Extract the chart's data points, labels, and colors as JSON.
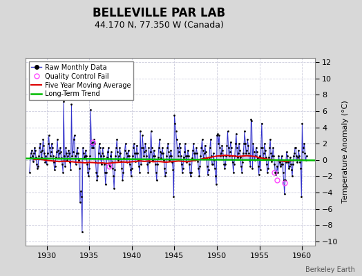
{
  "title": "BELLEVILLE PAR LAB",
  "subtitle": "44.170 N, 77.350 W (Canada)",
  "ylabel": "Temperature Anomaly (°C)",
  "watermark": "Berkeley Earth",
  "xlim": [
    1927.5,
    1961.5
  ],
  "ylim": [
    -10.5,
    12.5
  ],
  "yticks": [
    -10,
    -8,
    -6,
    -4,
    -2,
    0,
    2,
    4,
    6,
    8,
    10,
    12
  ],
  "xticks": [
    1930,
    1935,
    1940,
    1945,
    1950,
    1955,
    1960
  ],
  "fig_bg_color": "#d8d8d8",
  "plot_bg_color": "#ffffff",
  "grid_color": "#ccccdd",
  "raw_color": "#3333cc",
  "raw_fill_color": "#9999dd",
  "dot_color": "#000000",
  "ma_color": "#dd0000",
  "trend_color": "#00bb00",
  "qc_color": "#ff44ff",
  "raw_monthly": [
    [
      1928.0,
      -1.5
    ],
    [
      1928.083,
      0.3
    ],
    [
      1928.167,
      0.8
    ],
    [
      1928.25,
      1.2
    ],
    [
      1928.333,
      0.5
    ],
    [
      1928.417,
      -0.2
    ],
    [
      1928.5,
      0.8
    ],
    [
      1928.583,
      1.5
    ],
    [
      1928.667,
      1.2
    ],
    [
      1928.75,
      0.3
    ],
    [
      1928.833,
      -0.5
    ],
    [
      1928.917,
      -1.0
    ],
    [
      1929.0,
      -0.8
    ],
    [
      1929.083,
      0.5
    ],
    [
      1929.167,
      1.5
    ],
    [
      1929.25,
      2.0
    ],
    [
      1929.333,
      1.0
    ],
    [
      1929.417,
      0.3
    ],
    [
      1929.5,
      1.2
    ],
    [
      1929.583,
      2.5
    ],
    [
      1929.667,
      1.8
    ],
    [
      1929.75,
      0.8
    ],
    [
      1929.833,
      -0.3
    ],
    [
      1929.917,
      0.5
    ],
    [
      1930.0,
      -0.5
    ],
    [
      1930.083,
      0.8
    ],
    [
      1930.167,
      2.0
    ],
    [
      1930.25,
      3.0
    ],
    [
      1930.333,
      1.5
    ],
    [
      1930.417,
      0.5
    ],
    [
      1930.5,
      1.0
    ],
    [
      1930.583,
      2.0
    ],
    [
      1930.667,
      1.5
    ],
    [
      1930.75,
      0.5
    ],
    [
      1930.833,
      -0.3
    ],
    [
      1930.917,
      -1.2
    ],
    [
      1931.0,
      -0.8
    ],
    [
      1931.083,
      0.3
    ],
    [
      1931.167,
      1.0
    ],
    [
      1931.25,
      2.5
    ],
    [
      1931.333,
      1.2
    ],
    [
      1931.417,
      0.2
    ],
    [
      1931.5,
      0.8
    ],
    [
      1931.583,
      1.5
    ],
    [
      1931.667,
      1.0
    ],
    [
      1931.75,
      0.2
    ],
    [
      1931.833,
      -0.5
    ],
    [
      1931.917,
      -1.5
    ],
    [
      1932.0,
      7.2
    ],
    [
      1932.083,
      0.5
    ],
    [
      1932.167,
      -0.8
    ],
    [
      1932.25,
      1.5
    ],
    [
      1932.333,
      0.8
    ],
    [
      1932.417,
      0.0
    ],
    [
      1932.5,
      0.5
    ],
    [
      1932.583,
      1.2
    ],
    [
      1932.667,
      0.8
    ],
    [
      1932.75,
      -0.3
    ],
    [
      1932.833,
      -1.2
    ],
    [
      1932.917,
      6.8
    ],
    [
      1933.0,
      0.5
    ],
    [
      1933.083,
      1.0
    ],
    [
      1933.167,
      2.5
    ],
    [
      1933.25,
      3.0
    ],
    [
      1933.333,
      0.5
    ],
    [
      1933.417,
      -0.5
    ],
    [
      1933.5,
      0.8
    ],
    [
      1933.583,
      1.5
    ],
    [
      1933.667,
      0.8
    ],
    [
      1933.75,
      0.0
    ],
    [
      1933.833,
      -1.0
    ],
    [
      1933.917,
      -5.2
    ],
    [
      1934.0,
      -3.8
    ],
    [
      1934.083,
      -4.5
    ],
    [
      1934.167,
      -8.8
    ],
    [
      1934.25,
      1.5
    ],
    [
      1934.333,
      0.8
    ],
    [
      1934.417,
      0.3
    ],
    [
      1934.5,
      0.5
    ],
    [
      1934.583,
      1.2
    ],
    [
      1934.667,
      0.5
    ],
    [
      1934.75,
      -0.5
    ],
    [
      1934.833,
      -1.5
    ],
    [
      1934.917,
      -2.0
    ],
    [
      1935.0,
      -1.0
    ],
    [
      1935.083,
      0.5
    ],
    [
      1935.167,
      6.2
    ],
    [
      1935.25,
      2.0
    ],
    [
      1935.333,
      1.5
    ],
    [
      1935.417,
      2.2
    ],
    [
      1935.5,
      1.5
    ],
    [
      1935.583,
      2.5
    ],
    [
      1935.667,
      2.0
    ],
    [
      1935.75,
      -0.3
    ],
    [
      1935.833,
      -1.5
    ],
    [
      1935.917,
      -2.5
    ],
    [
      1936.0,
      -2.0
    ],
    [
      1936.083,
      0.8
    ],
    [
      1936.167,
      2.0
    ],
    [
      1936.25,
      1.5
    ],
    [
      1936.333,
      0.5
    ],
    [
      1936.417,
      -0.5
    ],
    [
      1936.5,
      0.8
    ],
    [
      1936.583,
      1.5
    ],
    [
      1936.667,
      0.5
    ],
    [
      1936.75,
      -0.5
    ],
    [
      1936.833,
      -1.5
    ],
    [
      1936.917,
      -3.0
    ],
    [
      1937.0,
      -1.5
    ],
    [
      1937.083,
      0.3
    ],
    [
      1937.167,
      1.0
    ],
    [
      1937.25,
      1.5
    ],
    [
      1937.333,
      -0.5
    ],
    [
      1937.417,
      -0.8
    ],
    [
      1937.5,
      0.5
    ],
    [
      1937.583,
      1.0
    ],
    [
      1937.667,
      -0.3
    ],
    [
      1937.75,
      -1.0
    ],
    [
      1937.833,
      -2.0
    ],
    [
      1937.917,
      -3.5
    ],
    [
      1938.0,
      -1.2
    ],
    [
      1938.083,
      0.5
    ],
    [
      1938.167,
      1.5
    ],
    [
      1938.25,
      2.5
    ],
    [
      1938.333,
      1.0
    ],
    [
      1938.417,
      0.0
    ],
    [
      1938.5,
      0.5
    ],
    [
      1938.583,
      1.5
    ],
    [
      1938.667,
      0.8
    ],
    [
      1938.75,
      -0.2
    ],
    [
      1938.833,
      -1.0
    ],
    [
      1938.917,
      -2.5
    ],
    [
      1939.0,
      -1.5
    ],
    [
      1939.083,
      0.2
    ],
    [
      1939.167,
      1.2
    ],
    [
      1939.25,
      2.0
    ],
    [
      1939.333,
      0.8
    ],
    [
      1939.417,
      -0.3
    ],
    [
      1939.5,
      0.5
    ],
    [
      1939.583,
      1.2
    ],
    [
      1939.667,
      0.5
    ],
    [
      1939.75,
      -0.5
    ],
    [
      1939.833,
      -1.2
    ],
    [
      1939.917,
      -2.0
    ],
    [
      1940.0,
      -1.0
    ],
    [
      1940.083,
      0.5
    ],
    [
      1940.167,
      1.5
    ],
    [
      1940.25,
      2.0
    ],
    [
      1940.333,
      0.8
    ],
    [
      1940.417,
      -0.2
    ],
    [
      1940.5,
      0.8
    ],
    [
      1940.583,
      1.8
    ],
    [
      1940.667,
      0.8
    ],
    [
      1940.75,
      0.0
    ],
    [
      1940.833,
      -0.8
    ],
    [
      1940.917,
      -1.5
    ],
    [
      1941.0,
      3.5
    ],
    [
      1941.083,
      -0.5
    ],
    [
      1941.167,
      1.5
    ],
    [
      1941.25,
      3.0
    ],
    [
      1941.333,
      1.5
    ],
    [
      1941.417,
      0.5
    ],
    [
      1941.5,
      1.0
    ],
    [
      1941.583,
      2.0
    ],
    [
      1941.667,
      1.2
    ],
    [
      1941.75,
      0.5
    ],
    [
      1941.833,
      -0.5
    ],
    [
      1941.917,
      -1.5
    ],
    [
      1942.0,
      1.5
    ],
    [
      1942.083,
      -0.3
    ],
    [
      1942.167,
      1.0
    ],
    [
      1942.25,
      3.5
    ],
    [
      1942.333,
      1.5
    ],
    [
      1942.417,
      0.0
    ],
    [
      1942.5,
      0.5
    ],
    [
      1942.583,
      1.2
    ],
    [
      1942.667,
      0.5
    ],
    [
      1942.75,
      -0.5
    ],
    [
      1942.833,
      -1.5
    ],
    [
      1942.917,
      -2.5
    ],
    [
      1943.0,
      -0.5
    ],
    [
      1943.083,
      0.3
    ],
    [
      1943.167,
      1.5
    ],
    [
      1943.25,
      2.5
    ],
    [
      1943.333,
      1.0
    ],
    [
      1943.417,
      0.2
    ],
    [
      1943.5,
      0.8
    ],
    [
      1943.583,
      1.5
    ],
    [
      1943.667,
      0.8
    ],
    [
      1943.75,
      0.0
    ],
    [
      1943.833,
      -1.0
    ],
    [
      1943.917,
      -2.0
    ],
    [
      1944.0,
      -1.5
    ],
    [
      1944.083,
      0.5
    ],
    [
      1944.167,
      1.5
    ],
    [
      1944.25,
      2.0
    ],
    [
      1944.333,
      1.0
    ],
    [
      1944.417,
      0.0
    ],
    [
      1944.5,
      0.5
    ],
    [
      1944.583,
      1.2
    ],
    [
      1944.667,
      0.5
    ],
    [
      1944.75,
      -0.3
    ],
    [
      1944.833,
      -1.2
    ],
    [
      1944.917,
      -4.5
    ],
    [
      1945.0,
      5.5
    ],
    [
      1945.083,
      4.5
    ],
    [
      1945.167,
      3.5
    ],
    [
      1945.25,
      2.5
    ],
    [
      1945.333,
      1.5
    ],
    [
      1945.417,
      0.5
    ],
    [
      1945.5,
      1.0
    ],
    [
      1945.583,
      2.0
    ],
    [
      1945.667,
      1.5
    ],
    [
      1945.75,
      0.5
    ],
    [
      1945.833,
      -0.5
    ],
    [
      1945.917,
      -1.5
    ],
    [
      1946.0,
      -1.0
    ],
    [
      1946.083,
      0.3
    ],
    [
      1946.167,
      1.0
    ],
    [
      1946.25,
      2.0
    ],
    [
      1946.333,
      0.5
    ],
    [
      1946.417,
      -0.3
    ],
    [
      1946.5,
      0.5
    ],
    [
      1946.583,
      1.2
    ],
    [
      1946.667,
      0.5
    ],
    [
      1946.75,
      -0.5
    ],
    [
      1946.833,
      -1.5
    ],
    [
      1946.917,
      -2.0
    ],
    [
      1947.0,
      -1.5
    ],
    [
      1947.083,
      0.2
    ],
    [
      1947.167,
      1.2
    ],
    [
      1947.25,
      2.0
    ],
    [
      1947.333,
      0.8
    ],
    [
      1947.417,
      0.0
    ],
    [
      1947.5,
      0.8
    ],
    [
      1947.583,
      1.5
    ],
    [
      1947.667,
      0.8
    ],
    [
      1947.75,
      -0.2
    ],
    [
      1947.833,
      -1.0
    ],
    [
      1947.917,
      -2.0
    ],
    [
      1948.0,
      -0.8
    ],
    [
      1948.083,
      0.5
    ],
    [
      1948.167,
      1.5
    ],
    [
      1948.25,
      2.5
    ],
    [
      1948.333,
      1.2
    ],
    [
      1948.417,
      0.2
    ],
    [
      1948.5,
      0.8
    ],
    [
      1948.583,
      1.8
    ],
    [
      1948.667,
      1.0
    ],
    [
      1948.75,
      0.2
    ],
    [
      1948.833,
      -0.8
    ],
    [
      1948.917,
      -1.8
    ],
    [
      1949.0,
      -1.2
    ],
    [
      1949.083,
      0.3
    ],
    [
      1949.167,
      1.5
    ],
    [
      1949.25,
      2.5
    ],
    [
      1949.333,
      0.5
    ],
    [
      1949.417,
      -0.5
    ],
    [
      1949.5,
      -0.5
    ],
    [
      1949.583,
      0.8
    ],
    [
      1949.667,
      0.0
    ],
    [
      1949.75,
      -1.0
    ],
    [
      1949.833,
      -2.0
    ],
    [
      1949.917,
      -3.0
    ],
    [
      1950.0,
      3.0
    ],
    [
      1950.083,
      3.2
    ],
    [
      1950.167,
      2.0
    ],
    [
      1950.25,
      3.0
    ],
    [
      1950.333,
      1.5
    ],
    [
      1950.417,
      0.5
    ],
    [
      1950.5,
      0.8
    ],
    [
      1950.583,
      1.8
    ],
    [
      1950.667,
      1.2
    ],
    [
      1950.75,
      0.5
    ],
    [
      1950.833,
      -0.5
    ],
    [
      1950.917,
      -1.0
    ],
    [
      1951.0,
      -0.5
    ],
    [
      1951.083,
      0.5
    ],
    [
      1951.167,
      1.8
    ],
    [
      1951.25,
      3.5
    ],
    [
      1951.333,
      1.5
    ],
    [
      1951.417,
      0.5
    ],
    [
      1951.5,
      1.0
    ],
    [
      1951.583,
      2.2
    ],
    [
      1951.667,
      1.5
    ],
    [
      1951.75,
      0.5
    ],
    [
      1951.833,
      -0.3
    ],
    [
      1951.917,
      -1.5
    ],
    [
      1952.0,
      -0.5
    ],
    [
      1952.083,
      0.5
    ],
    [
      1952.167,
      2.0
    ],
    [
      1952.25,
      3.2
    ],
    [
      1952.333,
      1.5
    ],
    [
      1952.417,
      0.3
    ],
    [
      1952.5,
      0.8
    ],
    [
      1952.583,
      2.0
    ],
    [
      1952.667,
      1.2
    ],
    [
      1952.75,
      0.3
    ],
    [
      1952.833,
      -0.8
    ],
    [
      1952.917,
      -1.5
    ],
    [
      1953.0,
      -0.3
    ],
    [
      1953.083,
      0.8
    ],
    [
      1953.167,
      2.0
    ],
    [
      1953.25,
      3.5
    ],
    [
      1953.333,
      2.0
    ],
    [
      1953.417,
      0.8
    ],
    [
      1953.5,
      1.2
    ],
    [
      1953.583,
      2.5
    ],
    [
      1953.667,
      1.8
    ],
    [
      1953.75,
      0.8
    ],
    [
      1953.833,
      0.0
    ],
    [
      1953.917,
      -0.8
    ],
    [
      1954.0,
      5.0
    ],
    [
      1954.083,
      4.8
    ],
    [
      1954.167,
      -1.0
    ],
    [
      1954.25,
      2.0
    ],
    [
      1954.333,
      1.0
    ],
    [
      1954.417,
      0.0
    ],
    [
      1954.5,
      0.5
    ],
    [
      1954.583,
      1.5
    ],
    [
      1954.667,
      1.0
    ],
    [
      1954.75,
      0.2
    ],
    [
      1954.833,
      -0.8
    ],
    [
      1954.917,
      -1.8
    ],
    [
      1955.0,
      0.5
    ],
    [
      1955.083,
      -1.2
    ],
    [
      1955.167,
      1.5
    ],
    [
      1955.25,
      4.5
    ],
    [
      1955.333,
      1.5
    ],
    [
      1955.417,
      0.2
    ],
    [
      1955.5,
      0.8
    ],
    [
      1955.583,
      2.0
    ],
    [
      1955.667,
      1.2
    ],
    [
      1955.75,
      0.3
    ],
    [
      1955.833,
      -0.5
    ],
    [
      1955.917,
      -1.5
    ],
    [
      1956.0,
      -1.0
    ],
    [
      1956.083,
      0.3
    ],
    [
      1956.167,
      1.5
    ],
    [
      1956.25,
      2.5
    ],
    [
      1956.333,
      0.8
    ],
    [
      1956.417,
      -0.2
    ],
    [
      1956.5,
      0.5
    ],
    [
      1956.583,
      1.5
    ],
    [
      1956.667,
      0.5
    ],
    [
      1956.75,
      -0.5
    ],
    [
      1956.833,
      -1.5
    ],
    [
      1956.917,
      -1.8
    ],
    [
      1957.0,
      -1.5
    ],
    [
      1957.083,
      -0.8
    ],
    [
      1957.167,
      -1.5
    ],
    [
      1957.25,
      0.5
    ],
    [
      1957.333,
      -0.3
    ],
    [
      1957.417,
      -0.8
    ],
    [
      1957.5,
      -0.5
    ],
    [
      1957.583,
      0.5
    ],
    [
      1957.667,
      -0.5
    ],
    [
      1957.75,
      -1.5
    ],
    [
      1957.833,
      -2.5
    ],
    [
      1957.917,
      -4.2
    ],
    [
      1958.0,
      -2.5
    ],
    [
      1958.083,
      -0.3
    ],
    [
      1958.167,
      1.0
    ],
    [
      1958.25,
      0.5
    ],
    [
      1958.333,
      -0.3
    ],
    [
      1958.417,
      -1.0
    ],
    [
      1958.5,
      -0.8
    ],
    [
      1958.583,
      0.3
    ],
    [
      1958.667,
      -0.5
    ],
    [
      1958.75,
      -1.2
    ],
    [
      1958.833,
      -2.0
    ],
    [
      1958.917,
      -0.5
    ],
    [
      1959.0,
      0.5
    ],
    [
      1959.083,
      0.8
    ],
    [
      1959.167,
      1.5
    ],
    [
      1959.25,
      1.5
    ],
    [
      1959.333,
      0.5
    ],
    [
      1959.417,
      -0.3
    ],
    [
      1959.5,
      0.3
    ],
    [
      1959.583,
      1.2
    ],
    [
      1959.667,
      0.5
    ],
    [
      1959.75,
      -0.3
    ],
    [
      1959.833,
      -1.0
    ],
    [
      1959.917,
      -4.5
    ],
    [
      1960.0,
      4.5
    ],
    [
      1960.083,
      1.0
    ],
    [
      1960.167,
      1.5
    ],
    [
      1960.25,
      2.0
    ],
    [
      1960.333,
      0.8
    ],
    [
      1960.417,
      0.0
    ],
    [
      1960.5,
      0.5
    ]
  ],
  "qc_fail_points": [
    [
      1935.417,
      2.2
    ],
    [
      1937.333,
      -0.8
    ],
    [
      1956.75,
      -1.5
    ],
    [
      1957.083,
      -2.5
    ],
    [
      1957.917,
      -2.8
    ]
  ],
  "five_year_ma": [
    [
      1928.5,
      0.05
    ],
    [
      1929.0,
      0.08
    ],
    [
      1929.5,
      0.05
    ],
    [
      1930.0,
      -0.05
    ],
    [
      1930.5,
      -0.1
    ],
    [
      1931.0,
      -0.15
    ],
    [
      1931.5,
      -0.2
    ],
    [
      1932.0,
      -0.15
    ],
    [
      1932.5,
      -0.18
    ],
    [
      1933.0,
      -0.22
    ],
    [
      1933.5,
      -0.28
    ],
    [
      1934.0,
      -0.3
    ],
    [
      1934.5,
      -0.35
    ],
    [
      1935.0,
      -0.3
    ],
    [
      1935.5,
      -0.32
    ],
    [
      1936.0,
      -0.38
    ],
    [
      1936.5,
      -0.35
    ],
    [
      1937.0,
      -0.42
    ],
    [
      1937.5,
      -0.38
    ],
    [
      1938.0,
      -0.32
    ],
    [
      1938.5,
      -0.28
    ],
    [
      1939.0,
      -0.25
    ],
    [
      1939.5,
      -0.28
    ],
    [
      1940.0,
      -0.22
    ],
    [
      1940.5,
      -0.18
    ],
    [
      1941.0,
      -0.12
    ],
    [
      1941.5,
      -0.18
    ],
    [
      1942.0,
      -0.12
    ],
    [
      1942.5,
      -0.22
    ],
    [
      1943.0,
      -0.18
    ],
    [
      1943.5,
      -0.22
    ],
    [
      1944.0,
      -0.28
    ],
    [
      1944.5,
      -0.22
    ],
    [
      1945.0,
      -0.18
    ],
    [
      1945.5,
      -0.12
    ],
    [
      1946.0,
      -0.18
    ],
    [
      1946.5,
      -0.22
    ],
    [
      1947.0,
      -0.12
    ],
    [
      1947.5,
      -0.05
    ],
    [
      1948.0,
      0.08
    ],
    [
      1948.5,
      0.18
    ],
    [
      1949.0,
      0.28
    ],
    [
      1949.5,
      0.38
    ],
    [
      1950.0,
      0.48
    ],
    [
      1950.5,
      0.52
    ],
    [
      1951.0,
      0.58
    ],
    [
      1951.5,
      0.52
    ],
    [
      1952.0,
      0.48
    ],
    [
      1952.5,
      0.42
    ],
    [
      1953.0,
      0.48
    ],
    [
      1953.5,
      0.52
    ],
    [
      1954.0,
      0.48
    ],
    [
      1954.5,
      0.42
    ],
    [
      1955.0,
      0.28
    ],
    [
      1955.5,
      0.18
    ],
    [
      1956.0,
      0.08
    ],
    [
      1956.5,
      0.03
    ],
    [
      1957.0,
      -0.02
    ],
    [
      1957.5,
      -0.12
    ],
    [
      1958.0,
      -0.18
    ],
    [
      1958.5,
      -0.12
    ],
    [
      1959.0,
      -0.05
    ],
    [
      1959.5,
      0.0
    ],
    [
      1960.0,
      0.03
    ]
  ],
  "trend_x": [
    1927.5,
    1961.5
  ],
  "trend_y": [
    0.18,
    -0.05
  ]
}
